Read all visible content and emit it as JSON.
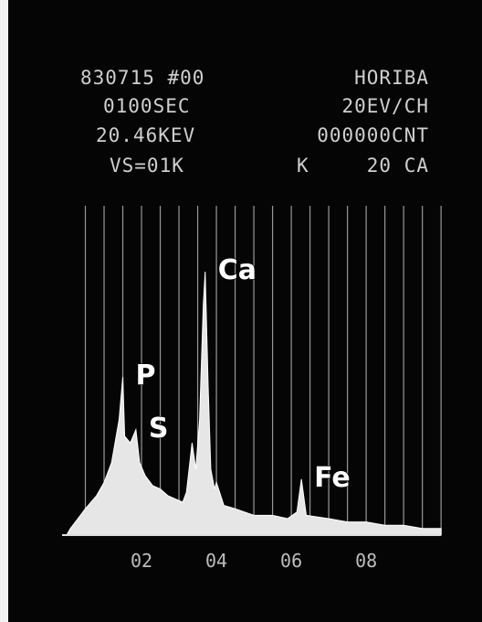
{
  "header": {
    "rows": [
      [
        "830715 #00",
        "HORIBA"
      ],
      [
        "0100SEC",
        "20EV/CH"
      ],
      [
        "20.46KEV",
        "000000CNT"
      ],
      [
        "VS=01K",
        "K",
        "20 CA"
      ]
    ]
  },
  "chart_data": {
    "type": "area",
    "color": "#e6e6e6",
    "grid_color": "#bdbdbd",
    "x": [
      0,
      0.1,
      0.3,
      0.5,
      0.8,
      1.0,
      1.2,
      1.4,
      1.5,
      1.55,
      1.7,
      1.85,
      1.95,
      2.1,
      2.3,
      2.5,
      2.7,
      2.9,
      3.1,
      3.2,
      3.35,
      3.45,
      3.55,
      3.65,
      3.7,
      3.78,
      3.85,
      3.95,
      4.0,
      4.2,
      4.5,
      5.0,
      5.5,
      5.9,
      6.15,
      6.27,
      6.4,
      7.0,
      7.5,
      8.0,
      8.5,
      9.0,
      9.5,
      10.0
    ],
    "values": [
      0,
      2,
      5,
      8,
      12,
      16,
      22,
      35,
      48,
      30,
      28,
      32,
      22,
      18,
      15,
      14,
      12,
      11,
      10,
      13,
      28,
      20,
      35,
      70,
      80,
      45,
      20,
      14,
      16,
      9,
      8,
      6,
      6,
      5,
      7,
      17,
      6,
      5,
      4,
      4,
      3,
      3,
      2,
      2
    ],
    "xlim": [
      0,
      10.24
    ],
    "ylim": [
      0,
      100
    ],
    "xticks": [
      {
        "value": 2,
        "label": "02"
      },
      {
        "value": 4,
        "label": "04"
      },
      {
        "value": 6,
        "label": "06"
      },
      {
        "value": 8,
        "label": "08"
      }
    ],
    "xgrid": [
      0.5,
      1,
      1.5,
      2,
      2.5,
      3,
      3.5,
      4,
      4.5,
      5,
      5.5,
      6,
      6.5,
      7,
      7.5,
      8,
      8.5,
      9,
      9.5,
      10
    ],
    "annotations": [
      {
        "text": "P",
        "x": 1.5,
        "y": 48
      },
      {
        "text": "S",
        "x": 1.85,
        "y": 32
      },
      {
        "text": "Ca",
        "x": 3.7,
        "y": 80
      },
      {
        "text": "Fe",
        "x": 6.27,
        "y": 17
      }
    ]
  }
}
